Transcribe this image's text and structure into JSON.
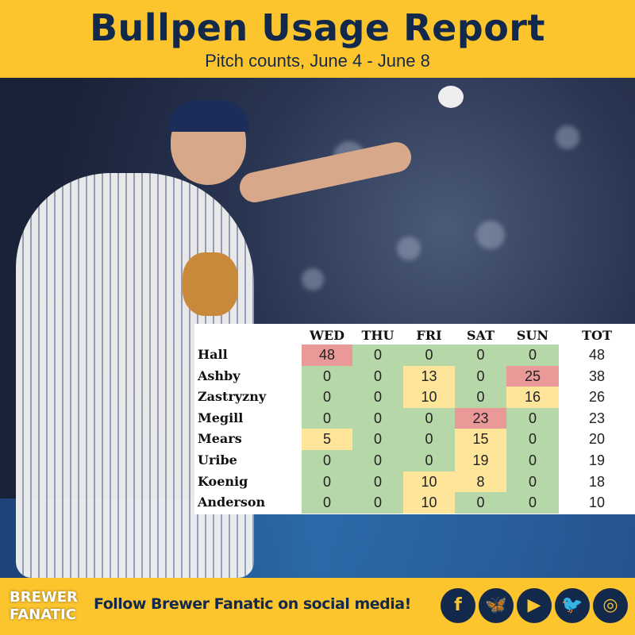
{
  "header": {
    "title": "Bullpen Usage Report",
    "subtitle": "Pitch counts, June 4 - June 8"
  },
  "colors": {
    "brand_yellow": "#fcc52e",
    "navy": "#13294b",
    "low": "#b6d7a8",
    "mid": "#ffe599",
    "high": "#ea9999"
  },
  "table": {
    "columns": [
      "WED",
      "THU",
      "FRI",
      "SAT",
      "SUN",
      "TOT"
    ],
    "rows": [
      {
        "name": "Hall",
        "values": [
          "48",
          "0",
          "0",
          "0",
          "0",
          "48"
        ],
        "levels": [
          "high",
          "low",
          "low",
          "low",
          "low"
        ]
      },
      {
        "name": "Ashby",
        "values": [
          "0",
          "0",
          "13",
          "0",
          "25",
          "38"
        ],
        "levels": [
          "low",
          "low",
          "mid",
          "low",
          "high"
        ]
      },
      {
        "name": "Zastryzny",
        "values": [
          "0",
          "0",
          "10",
          "0",
          "16",
          "26"
        ],
        "levels": [
          "low",
          "low",
          "mid",
          "low",
          "mid"
        ]
      },
      {
        "name": "Megill",
        "values": [
          "0",
          "0",
          "0",
          "23",
          "0",
          "23"
        ],
        "levels": [
          "low",
          "low",
          "low",
          "high",
          "low"
        ]
      },
      {
        "name": "Mears",
        "values": [
          "5",
          "0",
          "0",
          "15",
          "0",
          "20"
        ],
        "levels": [
          "mid",
          "low",
          "low",
          "mid",
          "low"
        ]
      },
      {
        "name": "Uribe",
        "values": [
          "0",
          "0",
          "0",
          "19",
          "0",
          "19"
        ],
        "levels": [
          "low",
          "low",
          "low",
          "mid",
          "low"
        ]
      },
      {
        "name": "Koenig",
        "values": [
          "0",
          "0",
          "10",
          "8",
          "0",
          "18"
        ],
        "levels": [
          "low",
          "low",
          "mid",
          "mid",
          "low"
        ]
      },
      {
        "name": "Anderson",
        "values": [
          "0",
          "0",
          "10",
          "0",
          "0",
          "10"
        ],
        "levels": [
          "low",
          "low",
          "mid",
          "low",
          "low"
        ]
      }
    ]
  },
  "footer": {
    "logo_line1": "BREWER",
    "logo_line2": "FANATIC",
    "follow_text": "Follow Brewer Fanatic on social media!",
    "social": [
      {
        "icon": "facebook-icon",
        "glyph": "f"
      },
      {
        "icon": "bluesky-icon",
        "glyph": "🦋"
      },
      {
        "icon": "youtube-icon",
        "glyph": "▶"
      },
      {
        "icon": "twitter-icon",
        "glyph": "🐦"
      },
      {
        "icon": "instagram-icon",
        "glyph": "◎"
      }
    ]
  }
}
